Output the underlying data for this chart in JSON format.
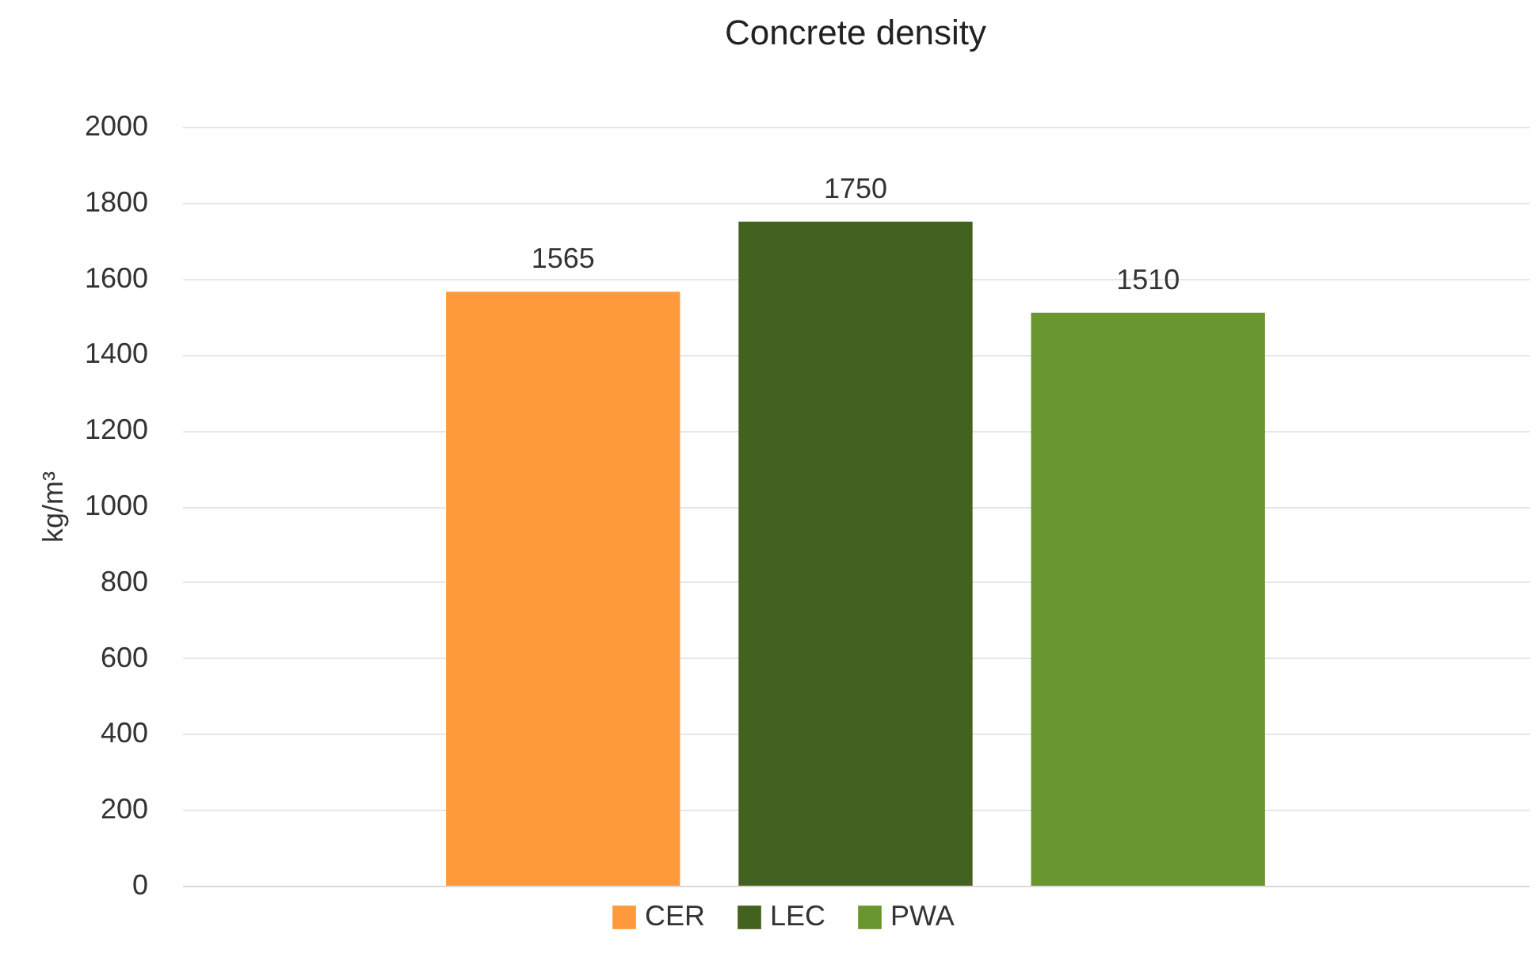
{
  "chart_data": {
    "type": "bar",
    "title": "Concrete density",
    "ylabel": "kg/m³",
    "categories": [
      null
    ],
    "series": [
      {
        "name": "CER",
        "color": "#ff9a3c",
        "values": [
          1565
        ]
      },
      {
        "name": "LEC",
        "color": "#43611f",
        "values": [
          1750
        ]
      },
      {
        "name": "PWA",
        "color": "#6a9632",
        "values": [
          1510
        ]
      }
    ],
    "ylim": [
      0,
      2000
    ],
    "yticks": [
      0,
      200,
      400,
      600,
      800,
      1000,
      1200,
      1400,
      1600,
      1800,
      2000
    ],
    "grid": "y",
    "legend": "bottom",
    "data_labels": true,
    "tick_labels": "y"
  }
}
